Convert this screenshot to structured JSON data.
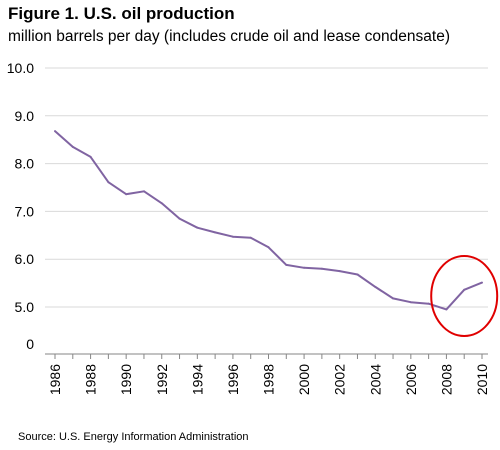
{
  "title": "Figure 1.  U.S. oil production",
  "subtitle": "million barrels per day (includes crude oil and lease condensate)",
  "source": "Source: U.S. Energy Information Administration",
  "colors": {
    "line": "#8064a2",
    "gridline": "#d9d9d9",
    "axis": "#868686",
    "highlight_circle": "#e00000"
  },
  "chart_data": {
    "type": "line",
    "title": "Figure 1.  U.S. oil production",
    "subtitle": "million barrels per day (includes crude oil and lease condensate)",
    "xlabel": "",
    "ylabel": "",
    "x": [
      1986,
      1987,
      1988,
      1989,
      1990,
      1991,
      1992,
      1993,
      1994,
      1995,
      1996,
      1997,
      1998,
      1999,
      2000,
      2001,
      2002,
      2003,
      2004,
      2005,
      2006,
      2007,
      2008,
      2009,
      2010
    ],
    "series": [
      {
        "values": [
          8.68,
          8.35,
          8.14,
          7.61,
          7.36,
          7.42,
          7.17,
          6.85,
          6.66,
          6.56,
          6.47,
          6.45,
          6.25,
          5.88,
          5.82,
          5.8,
          5.75,
          5.68,
          5.42,
          5.18,
          5.1,
          5.07,
          4.95,
          5.36,
          5.51
        ]
      }
    ],
    "y_ticks": [
      "10.0",
      "9.0",
      "8.0",
      "7.0",
      "6.0",
      "5.0",
      "0"
    ],
    "x_ticks": [
      "1986",
      "1988",
      "1990",
      "1992",
      "1994",
      "1996",
      "1998",
      "2000",
      "2002",
      "2004",
      "2006",
      "2008",
      "2010"
    ],
    "y_axis_break": "scale jumps from 5.0 to 0 at the bottom",
    "grid": true,
    "legend": "none",
    "annotation": "red ellipse circling 2008–2010 rise"
  }
}
